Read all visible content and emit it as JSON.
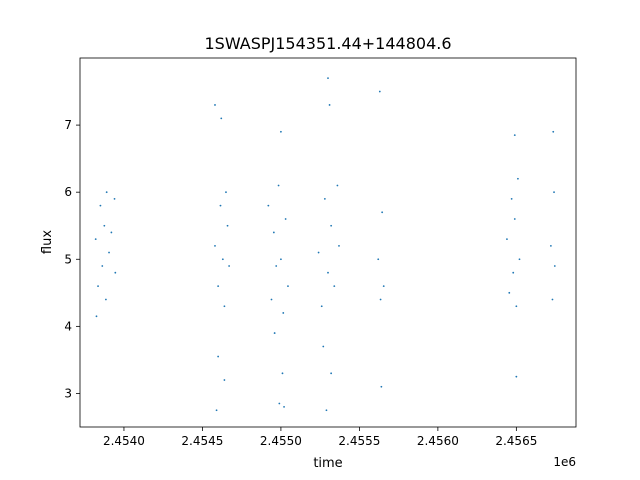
{
  "chart_data": {
    "type": "scatter",
    "title": "1SWASPJ154351.44+144804.6",
    "xlabel": "time",
    "ylabel": "flux",
    "x_offset_label": "1e6",
    "xlim": [
      2453720,
      2456880
    ],
    "ylim": [
      2.5,
      8.0
    ],
    "x_ticks": [
      2.454,
      2.4545,
      2.455,
      2.4555,
      2.456,
      2.4565
    ],
    "x_tick_labels": [
      "2.4540",
      "2.4545",
      "2.4550",
      "2.4555",
      "2.4560",
      "2.4565"
    ],
    "y_ticks": [
      3,
      4,
      5,
      6,
      7
    ],
    "y_tick_labels": [
      "3",
      "4",
      "5",
      "6",
      "7"
    ],
    "grid": false,
    "marker_color": "#1f77b4",
    "series": [
      {
        "values": [
          {
            "x": 2453820,
            "y": 5.3
          },
          {
            "x": 2453835,
            "y": 4.6
          },
          {
            "x": 2453850,
            "y": 5.8
          },
          {
            "x": 2453862,
            "y": 4.9
          },
          {
            "x": 2453875,
            "y": 5.5
          },
          {
            "x": 2453885,
            "y": 4.4
          },
          {
            "x": 2453890,
            "y": 6.0
          },
          {
            "x": 2453905,
            "y": 5.1
          },
          {
            "x": 2453920,
            "y": 5.4
          },
          {
            "x": 2453940,
            "y": 5.9
          },
          {
            "x": 2453945,
            "y": 4.8
          },
          {
            "x": 2453825,
            "y": 4.15
          },
          {
            "x": 2454580,
            "y": 5.2
          },
          {
            "x": 2454600,
            "y": 4.6
          },
          {
            "x": 2454615,
            "y": 5.8
          },
          {
            "x": 2454630,
            "y": 5.0
          },
          {
            "x": 2454640,
            "y": 4.3
          },
          {
            "x": 2454650,
            "y": 6.0
          },
          {
            "x": 2454660,
            "y": 5.5
          },
          {
            "x": 2454670,
            "y": 4.9
          },
          {
            "x": 2454580,
            "y": 7.3
          },
          {
            "x": 2454620,
            "y": 7.1
          },
          {
            "x": 2454640,
            "y": 3.2
          },
          {
            "x": 2454590,
            "y": 2.75
          },
          {
            "x": 2454600,
            "y": 3.55
          },
          {
            "x": 2454920,
            "y": 5.8
          },
          {
            "x": 2454940,
            "y": 4.4
          },
          {
            "x": 2454955,
            "y": 5.4
          },
          {
            "x": 2454970,
            "y": 4.9
          },
          {
            "x": 2454985,
            "y": 6.1
          },
          {
            "x": 2455000,
            "y": 5.0
          },
          {
            "x": 2455015,
            "y": 4.2
          },
          {
            "x": 2455030,
            "y": 5.6
          },
          {
            "x": 2455045,
            "y": 4.6
          },
          {
            "x": 2455000,
            "y": 6.9
          },
          {
            "x": 2455010,
            "y": 3.3
          },
          {
            "x": 2454990,
            "y": 2.85
          },
          {
            "x": 2455020,
            "y": 2.8
          },
          {
            "x": 2454960,
            "y": 3.9
          },
          {
            "x": 2455240,
            "y": 5.1
          },
          {
            "x": 2455260,
            "y": 4.3
          },
          {
            "x": 2455280,
            "y": 5.9
          },
          {
            "x": 2455300,
            "y": 4.8
          },
          {
            "x": 2455320,
            "y": 5.5
          },
          {
            "x": 2455340,
            "y": 4.6
          },
          {
            "x": 2455360,
            "y": 6.1
          },
          {
            "x": 2455370,
            "y": 5.2
          },
          {
            "x": 2455300,
            "y": 7.7
          },
          {
            "x": 2455310,
            "y": 7.3
          },
          {
            "x": 2455290,
            "y": 2.75
          },
          {
            "x": 2455320,
            "y": 3.3
          },
          {
            "x": 2455270,
            "y": 3.7
          },
          {
            "x": 2455620,
            "y": 5.0
          },
          {
            "x": 2455635,
            "y": 4.4
          },
          {
            "x": 2455645,
            "y": 5.7
          },
          {
            "x": 2455655,
            "y": 4.6
          },
          {
            "x": 2455630,
            "y": 7.5
          },
          {
            "x": 2455640,
            "y": 3.1
          },
          {
            "x": 2456440,
            "y": 5.3
          },
          {
            "x": 2456455,
            "y": 4.5
          },
          {
            "x": 2456470,
            "y": 5.9
          },
          {
            "x": 2456480,
            "y": 4.8
          },
          {
            "x": 2456490,
            "y": 5.6
          },
          {
            "x": 2456500,
            "y": 4.3
          },
          {
            "x": 2456510,
            "y": 6.2
          },
          {
            "x": 2456520,
            "y": 5.0
          },
          {
            "x": 2456490,
            "y": 6.85
          },
          {
            "x": 2456500,
            "y": 3.25
          },
          {
            "x": 2456720,
            "y": 5.2
          },
          {
            "x": 2456730,
            "y": 4.4
          },
          {
            "x": 2456740,
            "y": 6.0
          },
          {
            "x": 2456745,
            "y": 4.9
          },
          {
            "x": 2456735,
            "y": 6.9
          }
        ]
      }
    ]
  }
}
